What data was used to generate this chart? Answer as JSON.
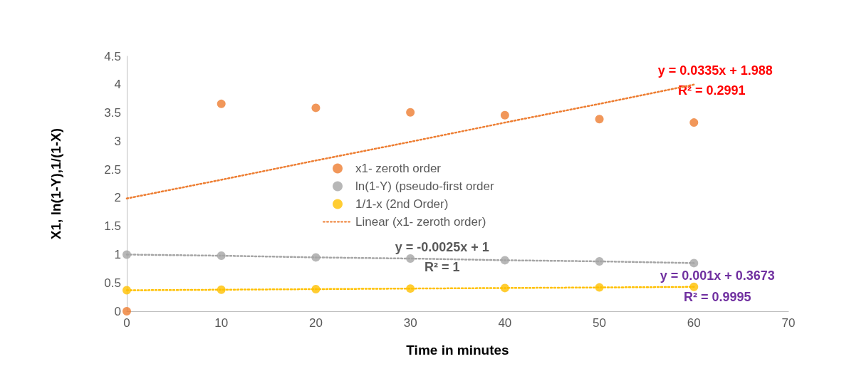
{
  "chart_data": {
    "type": "scatter",
    "xlabel": "Time in minutes",
    "ylabel": "X1, ln(1-Y),1/(1-X)",
    "x": [
      0,
      10,
      20,
      30,
      40,
      50,
      60
    ],
    "series": [
      {
        "name": "x1- zeroth order",
        "color": "#ed7d31",
        "values": [
          0,
          3.66,
          3.59,
          3.51,
          3.46,
          3.39,
          3.33
        ]
      },
      {
        "name": "ln(1-Y) (pseudo-first order",
        "color": "#a5a5a5",
        "values": [
          1,
          0.98,
          0.95,
          0.93,
          0.9,
          0.88,
          0.85
        ]
      },
      {
        "name": "1/1-x (2nd Order)",
        "color": "#ffc000",
        "values": [
          0.37,
          0.38,
          0.39,
          0.4,
          0.41,
          0.42,
          0.43
        ]
      },
      {
        "name": "Linear (x1- zeroth order)",
        "type": "line",
        "line_style": "dotted",
        "marker": "none",
        "color": "#ed7d31",
        "values": [
          1.99,
          2.32,
          2.66,
          2.99,
          3.33,
          3.66,
          4.0
        ]
      },
      {
        "type": "line",
        "line_style": "dotted",
        "marker": "none",
        "color": "#a5a5a5",
        "values": [
          1,
          0.98,
          0.95,
          0.93,
          0.9,
          0.88,
          0.85
        ]
      },
      {
        "type": "line",
        "line_style": "dotted",
        "marker": "none",
        "color": "#ffc000",
        "values": [
          0.37,
          0.38,
          0.39,
          0.4,
          0.41,
          0.42,
          0.43
        ]
      }
    ],
    "annotations": [
      "y = 0.0335x + 1.988",
      "R² = 0.2991",
      "y = -0.0025x + 1",
      "R² = 1",
      "y = 0.001x + 0.3673",
      "R² = 0.9995"
    ],
    "xlim": [
      0,
      70
    ],
    "xticks": [
      0,
      10,
      20,
      30,
      40,
      50,
      60,
      70
    ],
    "ylim": [
      0,
      4.5
    ],
    "yticks": [
      0,
      0.5,
      1,
      1.5,
      2,
      2.5,
      3,
      3.5,
      4,
      4.5
    ],
    "marker": "circle",
    "grid": false,
    "legend": "center"
  }
}
